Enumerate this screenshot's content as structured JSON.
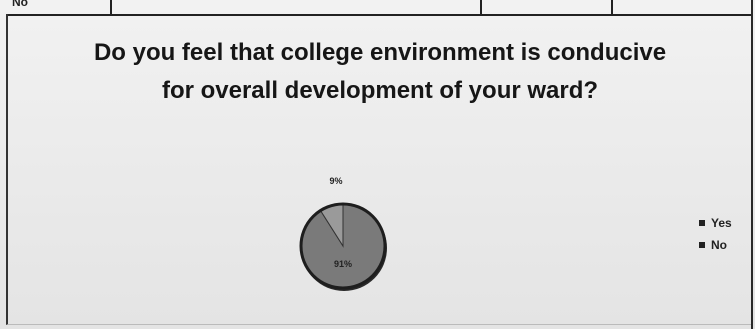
{
  "top_row": {
    "label": "No"
  },
  "chart_data": {
    "type": "pie",
    "title": "Do you feel that college environment is conducive for overall development of your ward?",
    "categories": [
      "Yes",
      "No"
    ],
    "values": [
      91,
      9
    ],
    "data_labels": [
      "91%",
      "9%"
    ],
    "colors": [
      "#7a7a7a",
      "#9a9a9a"
    ],
    "legend": {
      "position": "right",
      "entries": [
        "Yes",
        "No"
      ]
    }
  }
}
